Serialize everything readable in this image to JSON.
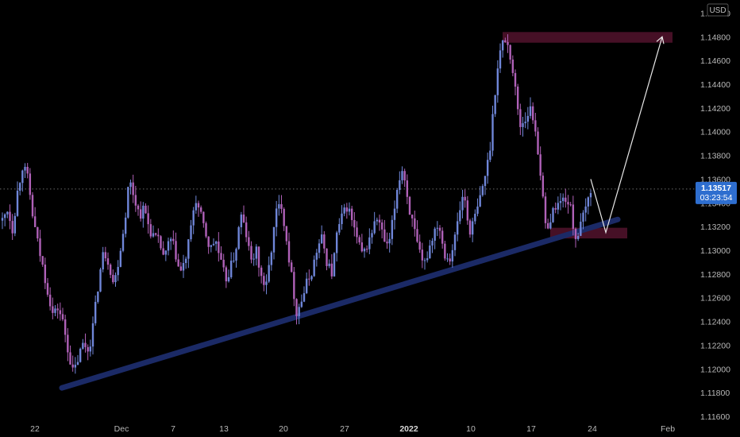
{
  "chart_data": {
    "type": "candlestick",
    "currency_badge": "USD",
    "y_ticks": [
      "1.15000",
      "1.14800",
      "1.14600",
      "1.14400",
      "1.14200",
      "1.14000",
      "1.13800",
      "1.13600",
      "1.13400",
      "1.13200",
      "1.13000",
      "1.12800",
      "1.12600",
      "1.12400",
      "1.12200",
      "1.12000",
      "1.11800",
      "1.11600"
    ],
    "x_ticks": [
      {
        "label": "22",
        "bold": false
      },
      {
        "label": "Dec",
        "bold": false
      },
      {
        "label": "7",
        "bold": false
      },
      {
        "label": "13",
        "bold": false
      },
      {
        "label": "20",
        "bold": false
      },
      {
        "label": "27",
        "bold": false
      },
      {
        "label": "2022",
        "bold": true
      },
      {
        "label": "10",
        "bold": false
      },
      {
        "label": "17",
        "bold": false
      },
      {
        "label": "24",
        "bold": false
      },
      {
        "label": "Feb",
        "bold": false
      }
    ],
    "last_price": "1.13517",
    "countdown": "03:23:54",
    "ylim": [
      1.1156,
      1.1511
    ],
    "path": [
      [
        0,
        1.1325
      ],
      [
        1,
        1.1335
      ],
      [
        2,
        1.1318
      ],
      [
        3,
        1.135
      ],
      [
        4,
        1.1372
      ],
      [
        5,
        1.136
      ],
      [
        6,
        1.1328
      ],
      [
        7,
        1.1305
      ],
      [
        8,
        1.1285
      ],
      [
        9,
        1.1265
      ],
      [
        10,
        1.1245
      ],
      [
        11,
        1.1252
      ],
      [
        12,
        1.1238
      ],
      [
        13,
        1.1215
      ],
      [
        14,
        1.1195
      ],
      [
        15,
        1.121
      ],
      [
        16,
        1.1222
      ],
      [
        17,
        1.1215
      ],
      [
        18,
        1.124
      ],
      [
        19,
        1.1275
      ],
      [
        20,
        1.13
      ],
      [
        21,
        1.129
      ],
      [
        22,
        1.127
      ],
      [
        23,
        1.1295
      ],
      [
        24,
        1.132
      ],
      [
        25,
        1.136
      ],
      [
        26,
        1.1345
      ],
      [
        27,
        1.133
      ],
      [
        28,
        1.1335
      ],
      [
        29,
        1.1318
      ],
      [
        30,
        1.131
      ],
      [
        31,
        1.1306
      ],
      [
        32,
        1.1292
      ],
      [
        33,
        1.131
      ],
      [
        34,
        1.13
      ],
      [
        35,
        1.128
      ],
      [
        36,
        1.129
      ],
      [
        37,
        1.1312
      ],
      [
        38,
        1.1345
      ],
      [
        39,
        1.133
      ],
      [
        40,
        1.1315
      ],
      [
        41,
        1.13
      ],
      [
        42,
        1.131
      ],
      [
        43,
        1.129
      ],
      [
        44,
        1.1275
      ],
      [
        45,
        1.1285
      ],
      [
        46,
        1.13
      ],
      [
        47,
        1.133
      ],
      [
        48,
        1.1315
      ],
      [
        49,
        1.129
      ],
      [
        50,
        1.13
      ],
      [
        51,
        1.1278
      ],
      [
        52,
        1.1268
      ],
      [
        53,
        1.13
      ],
      [
        54,
        1.1332
      ],
      [
        55,
        1.134
      ],
      [
        56,
        1.131
      ],
      [
        57,
        1.1278
      ],
      [
        58,
        1.1248
      ],
      [
        59,
        1.1258
      ],
      [
        60,
        1.1272
      ],
      [
        61,
        1.1282
      ],
      [
        62,
        1.13
      ],
      [
        63,
        1.131
      ],
      [
        64,
        1.129
      ],
      [
        65,
        1.128
      ],
      [
        66,
        1.1315
      ],
      [
        67,
        1.1328
      ],
      [
        68,
        1.1338
      ],
      [
        69,
        1.1324
      ],
      [
        70,
        1.1308
      ],
      [
        71,
        1.1295
      ],
      [
        72,
        1.1305
      ],
      [
        73,
        1.1318
      ],
      [
        74,
        1.1328
      ],
      [
        75,
        1.1312
      ],
      [
        76,
        1.13
      ],
      [
        77,
        1.1325
      ],
      [
        78,
        1.1358
      ],
      [
        79,
        1.137
      ],
      [
        80,
        1.134
      ],
      [
        81,
        1.132
      ],
      [
        82,
        1.13
      ],
      [
        83,
        1.1285
      ],
      [
        84,
        1.13
      ],
      [
        85,
        1.1315
      ],
      [
        86,
        1.1325
      ],
      [
        87,
        1.13
      ],
      [
        88,
        1.1292
      ],
      [
        89,
        1.1305
      ],
      [
        90,
        1.133
      ],
      [
        91,
        1.135
      ],
      [
        92,
        1.1315
      ],
      [
        93,
        1.1325
      ],
      [
        94,
        1.134
      ],
      [
        95,
        1.136
      ],
      [
        96,
        1.138
      ],
      [
        97,
        1.143
      ],
      [
        98,
        1.1465
      ],
      [
        99,
        1.148
      ],
      [
        100,
        1.1468
      ],
      [
        101,
        1.144
      ],
      [
        102,
        1.1405
      ],
      [
        103,
        1.141
      ],
      [
        104,
        1.142
      ],
      [
        105,
        1.1405
      ],
      [
        106,
        1.137
      ],
      [
        107,
        1.132
      ],
      [
        108,
        1.1325
      ],
      [
        109,
        1.1338
      ],
      [
        110,
        1.134
      ],
      [
        111,
        1.1345
      ],
      [
        112,
        1.1335
      ],
      [
        113,
        1.131
      ],
      [
        114,
        1.132
      ],
      [
        115,
        1.1335
      ],
      [
        116,
        1.1352
      ]
    ]
  },
  "annotations": {
    "target_zone_color": "#4a1128",
    "support_zone_color": "#4a1128",
    "trendline_color": "#1b2a66",
    "up_candle_color": "#6f86d8",
    "down_candle_color": "#b061b8",
    "arrow_color": "#e8e8e8",
    "price_label_color": "#2e6ecf"
  }
}
